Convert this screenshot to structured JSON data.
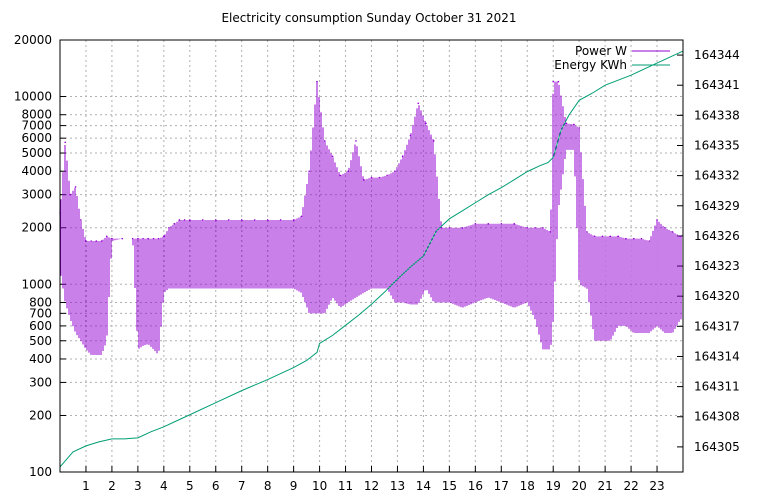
{
  "chart_data": {
    "type": "line",
    "title": "Electricity consumption Sunday October 31 2021",
    "xlabel": "",
    "ylabel": "",
    "y2label": "",
    "x_ticks": [
      1,
      2,
      3,
      4,
      5,
      6,
      7,
      8,
      9,
      10,
      11,
      12,
      13,
      14,
      15,
      16,
      17,
      18,
      19,
      20,
      21,
      22,
      23
    ],
    "xlim": [
      0,
      24
    ],
    "y_scale": "log",
    "ylim": [
      100,
      20000
    ],
    "y_ticks": [
      100,
      200,
      300,
      400,
      500,
      600,
      700,
      800,
      1000,
      2000,
      3000,
      4000,
      5000,
      6000,
      7000,
      8000,
      10000,
      20000
    ],
    "y2lim": [
      164302.5,
      164345.5
    ],
    "y2_ticks": [
      164305,
      164308,
      164311,
      164314,
      164317,
      164320,
      164323,
      164326,
      164329,
      164332,
      164335,
      164338,
      164341,
      164344
    ],
    "grid": true,
    "legend_position": "top-right",
    "colors": {
      "power": "#9400d3",
      "energy": "#009e73"
    },
    "series": [
      {
        "name": "Power W",
        "axis": "y",
        "style": "impulse-band",
        "x": [
          0.0,
          0.2,
          0.4,
          0.6,
          0.8,
          1.0,
          1.2,
          1.4,
          1.6,
          1.8,
          2.0,
          2.4,
          2.8,
          3.0,
          3.2,
          3.4,
          3.6,
          3.8,
          4.0,
          4.2,
          4.4,
          4.6,
          4.8,
          5.0,
          5.5,
          6.0,
          6.5,
          7.0,
          7.5,
          8.0,
          8.5,
          9.0,
          9.3,
          9.6,
          9.9,
          10.2,
          10.5,
          10.8,
          11.1,
          11.4,
          11.7,
          12.0,
          12.3,
          12.6,
          12.9,
          13.2,
          13.5,
          13.8,
          14.1,
          14.4,
          14.7,
          15.0,
          15.5,
          16.0,
          16.5,
          17.0,
          17.5,
          18.0,
          18.3,
          18.6,
          18.9,
          19.0,
          19.2,
          19.5,
          19.8,
          20.0,
          20.3,
          20.6,
          20.9,
          21.2,
          21.5,
          21.8,
          22.1,
          22.4,
          22.7,
          23.0,
          23.3,
          23.6,
          23.9
        ],
        "low": [
          1200,
          800,
          650,
          550,
          500,
          450,
          420,
          420,
          420,
          500,
          1700,
          1750,
          1750,
          450,
          470,
          480,
          450,
          420,
          900,
          950,
          950,
          950,
          950,
          950,
          950,
          950,
          950,
          950,
          950,
          950,
          950,
          950,
          900,
          700,
          700,
          700,
          850,
          750,
          800,
          850,
          900,
          950,
          950,
          950,
          800,
          800,
          780,
          780,
          950,
          800,
          800,
          800,
          750,
          800,
          850,
          800,
          750,
          800,
          650,
          450,
          450,
          650,
          2500,
          5200,
          5200,
          1000,
          950,
          500,
          500,
          500,
          600,
          600,
          550,
          550,
          550,
          600,
          550,
          550,
          650
        ],
        "high": [
          2400,
          5700,
          3000,
          3300,
          2200,
          1700,
          1700,
          1700,
          1700,
          1800,
          1750,
          1750,
          1750,
          1750,
          1750,
          1750,
          1750,
          1750,
          1800,
          2000,
          2100,
          2200,
          2200,
          2200,
          2200,
          2200,
          2200,
          2200,
          2200,
          2200,
          2200,
          2200,
          2300,
          4000,
          12000,
          5800,
          4800,
          3800,
          4000,
          5800,
          3600,
          3700,
          3700,
          3800,
          4000,
          4800,
          6200,
          9200,
          7200,
          5800,
          2000,
          2000,
          2000,
          2100,
          2100,
          2100,
          2100,
          2000,
          2000,
          2000,
          1900,
          12000,
          12000,
          7200,
          7100,
          6800,
          1900,
          1800,
          1800,
          1800,
          1800,
          1750,
          1750,
          1750,
          1700,
          2200,
          2000,
          1900,
          1800
        ]
      },
      {
        "name": "Energy KWh",
        "axis": "y2",
        "style": "line",
        "x": [
          0.0,
          0.2,
          0.5,
          1.0,
          1.5,
          2.0,
          2.5,
          3.0,
          3.5,
          4.0,
          4.5,
          5.0,
          6.0,
          7.0,
          8.0,
          9.0,
          9.5,
          9.9,
          10.0,
          10.5,
          11.0,
          11.5,
          12.0,
          12.5,
          13.0,
          13.5,
          14.0,
          14.5,
          15.0,
          15.5,
          16.0,
          16.5,
          17.0,
          17.5,
          18.0,
          18.5,
          18.8,
          19.0,
          19.3,
          19.6,
          20.0,
          20.5,
          21.0,
          22.0,
          23.0,
          24.0
        ],
        "values": [
          164303.0,
          164303.6,
          164304.5,
          164305.1,
          164305.5,
          164305.8,
          164305.8,
          164305.9,
          164306.5,
          164307.0,
          164307.6,
          164308.2,
          164309.4,
          164310.6,
          164311.7,
          164312.9,
          164313.6,
          164314.4,
          164315.3,
          164316.1,
          164317.1,
          164318.1,
          164319.2,
          164320.4,
          164321.7,
          164322.9,
          164324.0,
          164326.5,
          164327.7,
          164328.5,
          164329.3,
          164330.1,
          164330.8,
          164331.6,
          164332.4,
          164333.0,
          164333.3,
          164333.8,
          164336.5,
          164338.0,
          164339.5,
          164340.2,
          164341.0,
          164342.0,
          164343.2,
          164344.4
        ]
      }
    ]
  }
}
